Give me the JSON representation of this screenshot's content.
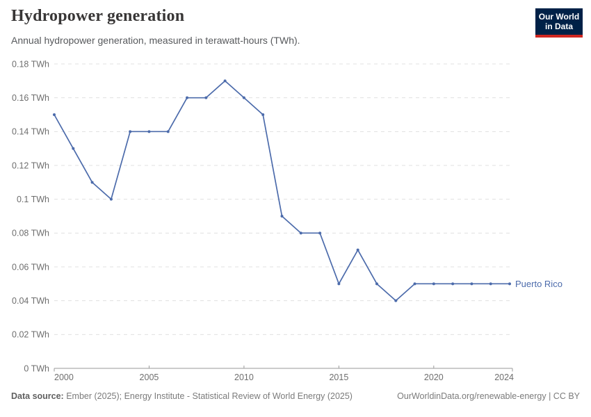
{
  "header": {
    "title": "Hydropower generation",
    "subtitle": "Annual hydropower generation, measured in terawatt-hours (TWh).",
    "logo": {
      "line1": "Our World",
      "line2": "in Data",
      "bg_color": "#002147",
      "bar_color": "#cf2721"
    }
  },
  "chart_data": {
    "type": "line",
    "title": "Hydropower generation",
    "unit": "TWh",
    "x": [
      2000,
      2001,
      2002,
      2003,
      2004,
      2005,
      2006,
      2007,
      2008,
      2009,
      2010,
      2011,
      2012,
      2013,
      2014,
      2015,
      2016,
      2017,
      2018,
      2019,
      2020,
      2021,
      2022,
      2023,
      2024
    ],
    "series": [
      {
        "name": "Puerto Rico",
        "color": "#4c6bab",
        "values": [
          0.15,
          0.13,
          0.11,
          0.1,
          0.14,
          0.14,
          0.14,
          0.16,
          0.16,
          0.17,
          0.16,
          0.15,
          0.09,
          0.08,
          0.08,
          0.05,
          0.07,
          0.05,
          0.04,
          0.05,
          0.05,
          0.05,
          0.05,
          0.05,
          0.05
        ]
      }
    ],
    "xlim": [
      2000,
      2024
    ],
    "ylim": [
      0,
      0.18
    ],
    "x_ticks": [
      2000,
      2005,
      2010,
      2015,
      2020,
      2024
    ],
    "x_tick_labels": [
      "2000",
      "2005",
      "2010",
      "2015",
      "2020",
      "2024"
    ],
    "y_ticks": [
      0,
      0.02,
      0.04,
      0.06,
      0.08,
      0.1,
      0.12,
      0.14,
      0.16,
      0.18
    ],
    "y_tick_labels": [
      "0 TWh",
      "0.02 TWh",
      "0.04 TWh",
      "0.06 TWh",
      "0.08 TWh",
      "0.1 TWh",
      "0.12 TWh",
      "0.14 TWh",
      "0.16 TWh",
      "0.18 TWh"
    ],
    "grid": "horizontal-dashed",
    "legend_position": "end-of-line",
    "axis_color": "#9a9a9a",
    "grid_color": "#e0e0e0",
    "tick_label_color": "#6e6e6e"
  },
  "footer": {
    "source_label": "Data source:",
    "source_text": " Ember (2025); Energy Institute - Statistical Review of World Energy (2025)",
    "credit": "OurWorldinData.org/renewable-energy | CC BY"
  }
}
